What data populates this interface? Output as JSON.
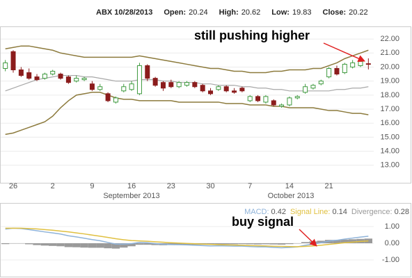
{
  "header": {
    "symbol": "ABX 10/28/2013",
    "open_label": "Open:",
    "open": 20.24,
    "high_label": "High:",
    "high": 20.62,
    "low_label": "Low:",
    "low": 19.83,
    "close_label": "Close:",
    "close": 20.22
  },
  "chart_data": [
    {
      "type": "candlestick",
      "annotation": "still pushing higher",
      "months": [
        "September 2013",
        "October 2013"
      ],
      "categories": [
        null,
        "26",
        null,
        null,
        null,
        null,
        "2",
        null,
        null,
        null,
        null,
        "9",
        null,
        null,
        null,
        null,
        "16",
        null,
        null,
        null,
        null,
        "23",
        null,
        null,
        null,
        null,
        "30",
        null,
        null,
        null,
        null,
        "7",
        null,
        null,
        null,
        null,
        "14",
        null,
        null,
        null,
        null,
        "21",
        null,
        null,
        null,
        null,
        null
      ],
      "open": [
        19.9,
        21.1,
        19.8,
        19.6,
        19.3,
        19.2,
        19.5,
        19.5,
        19.3,
        19.0,
        19.1,
        18.8,
        18.4,
        18.1,
        17.5,
        18.3,
        18.4,
        18.1,
        20.1,
        19.2,
        18.9,
        18.9,
        18.6,
        18.7,
        18.9,
        18.7,
        18.3,
        18.4,
        18.6,
        18.3,
        18.5,
        17.6,
        17.9,
        17.5,
        17.6,
        17.2,
        17.3,
        17.8,
        18.2,
        18.5,
        18.8,
        19.3,
        19.9,
        19.6,
        20.0,
        20.1,
        20.24
      ],
      "high": [
        20.5,
        21.2,
        20.0,
        19.9,
        19.5,
        19.6,
        19.8,
        19.6,
        19.4,
        19.4,
        19.3,
        19.0,
        18.8,
        18.2,
        17.9,
        18.8,
        19.0,
        20.3,
        20.2,
        19.3,
        19.0,
        19.1,
        19.0,
        19.0,
        19.0,
        18.8,
        18.5,
        18.7,
        18.7,
        18.5,
        18.6,
        18.0,
        18.0,
        18.0,
        17.7,
        17.4,
        17.9,
        18.0,
        18.8,
        18.8,
        19.1,
        20.0,
        20.1,
        20.3,
        20.5,
        20.6,
        20.62
      ],
      "low": [
        19.7,
        19.6,
        19.3,
        19.1,
        19.0,
        19.1,
        19.4,
        19.1,
        18.8,
        18.9,
        19.0,
        18.3,
        18.3,
        17.5,
        17.4,
        18.2,
        18.3,
        18.0,
        19.0,
        18.6,
        18.3,
        18.5,
        18.5,
        18.6,
        18.5,
        18.2,
        18.0,
        18.3,
        18.2,
        18.1,
        18.2,
        17.5,
        17.5,
        17.4,
        17.2,
        17.1,
        17.2,
        17.7,
        18.1,
        18.4,
        18.7,
        19.2,
        19.4,
        19.5,
        19.9,
        20.0,
        19.83
      ],
      "close": [
        20.3,
        19.8,
        19.4,
        19.2,
        19.1,
        19.5,
        19.7,
        19.2,
        18.9,
        19.2,
        19.2,
        18.4,
        18.6,
        17.6,
        17.8,
        18.6,
        18.8,
        20.1,
        19.2,
        18.7,
        18.5,
        18.6,
        18.9,
        18.9,
        18.6,
        18.3,
        18.1,
        18.6,
        18.3,
        18.2,
        18.3,
        17.9,
        17.6,
        17.9,
        17.3,
        17.3,
        17.8,
        17.9,
        18.6,
        18.7,
        19.0,
        19.9,
        19.5,
        20.2,
        20.3,
        20.4,
        20.22
      ],
      "up_color": "#3f9a3f",
      "down_color": "#8b1c1c",
      "series": [
        {
          "color": "#8c7a3c",
          "values": [
            21.3,
            21.4,
            21.5,
            21.5,
            21.4,
            21.3,
            21.2,
            21.0,
            20.9,
            20.8,
            20.7,
            20.7,
            20.7,
            20.7,
            20.7,
            20.7,
            20.7,
            20.8,
            20.7,
            20.6,
            20.5,
            20.4,
            20.3,
            20.2,
            20.1,
            20.0,
            19.9,
            19.9,
            19.8,
            19.7,
            19.7,
            19.6,
            19.6,
            19.6,
            19.7,
            19.7,
            19.8,
            19.8,
            19.8,
            19.9,
            19.9,
            20.1,
            20.3,
            20.6,
            20.8,
            21.0,
            21.2
          ]
        },
        {
          "color": "#a8a8a8",
          "values": [
            18.3,
            18.5,
            18.7,
            18.9,
            19.1,
            19.2,
            19.3,
            19.4,
            19.4,
            19.4,
            19.3,
            19.3,
            19.2,
            19.1,
            19.0,
            19.0,
            19.0,
            19.1,
            19.1,
            19.1,
            19.0,
            19.0,
            18.9,
            18.9,
            18.9,
            18.8,
            18.8,
            18.7,
            18.7,
            18.7,
            18.6,
            18.6,
            18.5,
            18.5,
            18.4,
            18.4,
            18.3,
            18.3,
            18.3,
            18.3,
            18.3,
            18.3,
            18.4,
            18.4,
            18.5,
            18.5,
            18.6
          ]
        },
        {
          "color": "#8c7a3c",
          "values": [
            15.2,
            15.3,
            15.5,
            15.7,
            15.9,
            16.1,
            16.5,
            17.1,
            17.6,
            18.0,
            18.1,
            18.2,
            18.2,
            18.0,
            17.8,
            17.7,
            17.7,
            17.6,
            17.6,
            17.6,
            17.6,
            17.6,
            17.5,
            17.5,
            17.5,
            17.5,
            17.5,
            17.5,
            17.4,
            17.4,
            17.4,
            17.3,
            17.3,
            17.3,
            17.2,
            17.2,
            17.1,
            17.1,
            17.1,
            17.1,
            17.0,
            16.9,
            16.9,
            16.8,
            16.7,
            16.7,
            16.6
          ]
        }
      ],
      "ylim": [
        11.8,
        22.55
      ],
      "yticks": [
        {
          "value": 13,
          "label": "13.00"
        },
        {
          "value": 14,
          "label": "14.00"
        },
        {
          "value": 15,
          "label": "15.00"
        },
        {
          "value": 16,
          "label": "16.00"
        },
        {
          "value": 17,
          "label": "17.00"
        },
        {
          "value": 18,
          "label": "18.00"
        },
        {
          "value": 19,
          "label": "19.00"
        },
        {
          "value": 20,
          "label": "20.00"
        },
        {
          "value": 21,
          "label": "21.00"
        },
        {
          "value": 22,
          "label": "22.00"
        }
      ],
      "grid": true
    },
    {
      "type": "line",
      "annotation": "buy signal",
      "legend": [
        {
          "label": "MACD:",
          "value": 0.42,
          "color": "#8fb3d9"
        },
        {
          "label": "Signal Line:",
          "value": 0.14,
          "color": "#e0c040"
        },
        {
          "label": "Divergence:",
          "value": 0.28,
          "color": "#999999"
        }
      ],
      "series": [
        {
          "style": "bar",
          "color": "#9a9a9a",
          "values": [
            -0.05,
            0.0,
            -0.02,
            -0.06,
            -0.11,
            -0.14,
            -0.16,
            -0.18,
            -0.23,
            -0.24,
            -0.26,
            -0.27,
            -0.27,
            -0.3,
            -0.32,
            -0.26,
            -0.18,
            -0.09,
            -0.09,
            -0.11,
            -0.12,
            -0.11,
            -0.1,
            -0.09,
            -0.09,
            -0.09,
            -0.09,
            -0.06,
            -0.06,
            -0.06,
            -0.05,
            -0.06,
            -0.07,
            -0.06,
            -0.07,
            -0.08,
            -0.05,
            -0.01,
            0.07,
            0.11,
            0.15,
            0.2,
            0.2,
            0.22,
            0.24,
            0.26,
            0.28
          ]
        },
        {
          "style": "line",
          "color": "#8fb3d9",
          "values": [
            0.85,
            0.9,
            0.88,
            0.82,
            0.75,
            0.68,
            0.62,
            0.55,
            0.45,
            0.38,
            0.3,
            0.22,
            0.15,
            0.05,
            -0.05,
            -0.05,
            -0.02,
            0.05,
            0.03,
            -0.02,
            -0.06,
            -0.08,
            -0.09,
            -0.1,
            -0.12,
            -0.14,
            -0.16,
            -0.15,
            -0.16,
            -0.17,
            -0.17,
            -0.2,
            -0.22,
            -0.22,
            -0.25,
            -0.27,
            -0.25,
            -0.22,
            -0.12,
            -0.05,
            0.03,
            0.13,
            0.18,
            0.25,
            0.31,
            0.37,
            0.42
          ]
        },
        {
          "style": "line",
          "color": "#e0c040",
          "values": [
            0.9,
            0.9,
            0.9,
            0.88,
            0.86,
            0.82,
            0.78,
            0.73,
            0.68,
            0.62,
            0.56,
            0.49,
            0.42,
            0.35,
            0.27,
            0.21,
            0.16,
            0.14,
            0.12,
            0.09,
            0.06,
            0.03,
            0.01,
            -0.01,
            -0.03,
            -0.05,
            -0.07,
            -0.09,
            -0.1,
            -0.11,
            -0.12,
            -0.14,
            -0.15,
            -0.16,
            -0.18,
            -0.19,
            -0.2,
            -0.21,
            -0.19,
            -0.16,
            -0.12,
            -0.07,
            -0.02,
            0.03,
            0.07,
            0.11,
            0.14
          ]
        }
      ],
      "ylim": [
        -2.0,
        2.25
      ],
      "yticks": [
        {
          "value": 1,
          "label": "1.00"
        },
        {
          "value": 0,
          "label": "0.00"
        },
        {
          "value": -1,
          "label": "-1.00"
        }
      ],
      "grid": true
    }
  ]
}
